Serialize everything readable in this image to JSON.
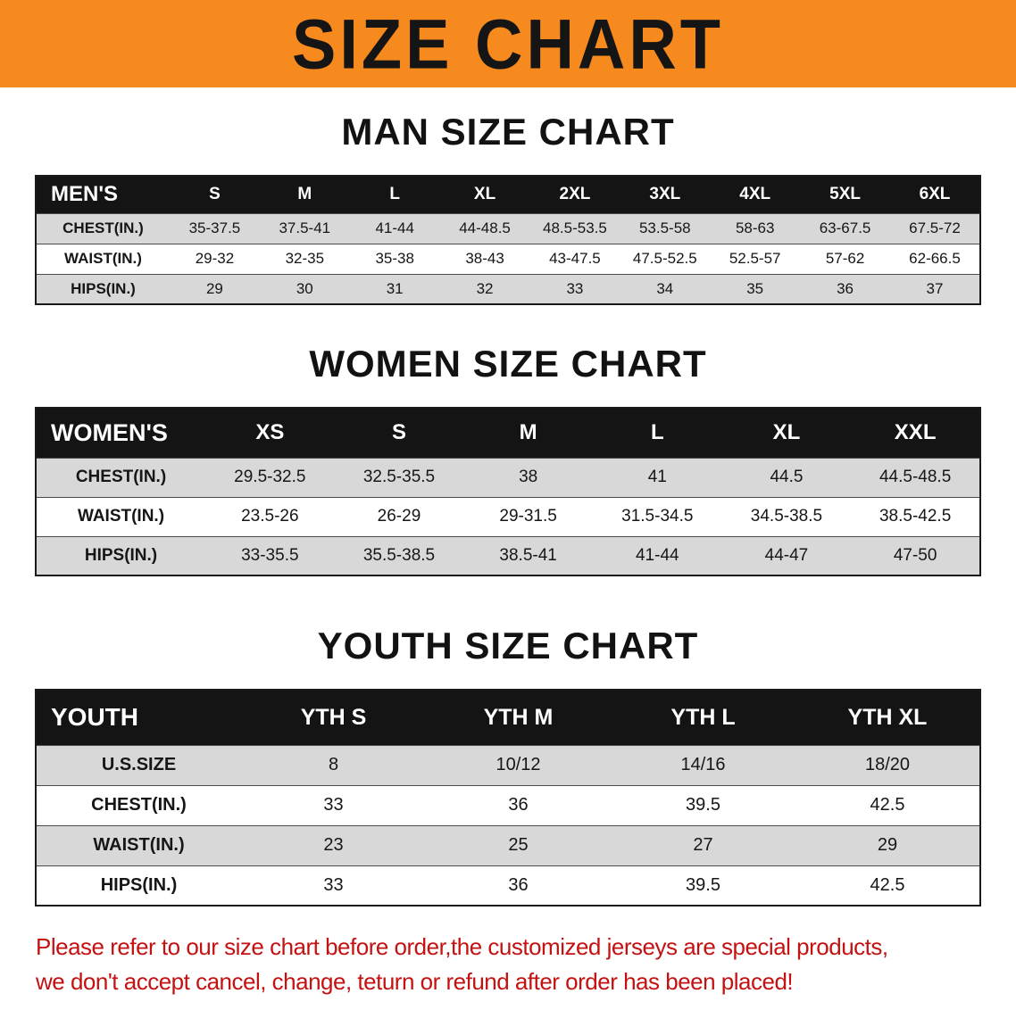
{
  "colors": {
    "banner_bg": "#f68a1e",
    "header_bg": "#141414",
    "row_alt": "#d8d8d8",
    "footer_text": "#c41111"
  },
  "banner": {
    "title": "SIZE CHART"
  },
  "sections": [
    {
      "heading": "MAN SIZE CHART",
      "table": {
        "header": [
          "MEN'S",
          "S",
          "M",
          "L",
          "XL",
          "2XL",
          "3XL",
          "4XL",
          "5XL",
          "6XL"
        ],
        "rows": [
          [
            "CHEST(IN.)",
            "35-37.5",
            "37.5-41",
            "41-44",
            "44-48.5",
            "48.5-53.5",
            "53.5-58",
            "58-63",
            "63-67.5",
            "67.5-72"
          ],
          [
            "WAIST(IN.)",
            "29-32",
            "32-35",
            "35-38",
            "38-43",
            "43-47.5",
            "47.5-52.5",
            "52.5-57",
            "57-62",
            "62-66.5"
          ],
          [
            "HIPS(IN.)",
            "29",
            "30",
            "31",
            "32",
            "33",
            "34",
            "35",
            "36",
            "37"
          ]
        ]
      }
    },
    {
      "heading": "WOMEN SIZE CHART",
      "table": {
        "header": [
          "WOMEN'S",
          "XS",
          "S",
          "M",
          "L",
          "XL",
          "XXL"
        ],
        "rows": [
          [
            "CHEST(IN.)",
            "29.5-32.5",
            "32.5-35.5",
            "38",
            "41",
            "44.5",
            "44.5-48.5"
          ],
          [
            "WAIST(IN.)",
            "23.5-26",
            "26-29",
            "29-31.5",
            "31.5-34.5",
            "34.5-38.5",
            "38.5-42.5"
          ],
          [
            "HIPS(IN.)",
            "33-35.5",
            "35.5-38.5",
            "38.5-41",
            "41-44",
            "44-47",
            "47-50"
          ]
        ]
      }
    },
    {
      "heading": "YOUTH SIZE CHART",
      "table": {
        "header": [
          "YOUTH",
          "YTH S",
          "YTH M",
          "YTH L",
          "YTH XL"
        ],
        "rows": [
          [
            "U.S.SIZE",
            "8",
            "10/12",
            "14/16",
            "18/20"
          ],
          [
            "CHEST(IN.)",
            "33",
            "36",
            "39.5",
            "42.5"
          ],
          [
            "WAIST(IN.)",
            "23",
            "25",
            "27",
            "29"
          ],
          [
            "HIPS(IN.)",
            "33",
            "36",
            "39.5",
            "42.5"
          ]
        ]
      }
    }
  ],
  "footer": {
    "line1": "Please refer to our size chart before order,the customized jerseys are special products,",
    "line2": "we don't accept cancel, change, teturn or refund after order has been placed!"
  }
}
